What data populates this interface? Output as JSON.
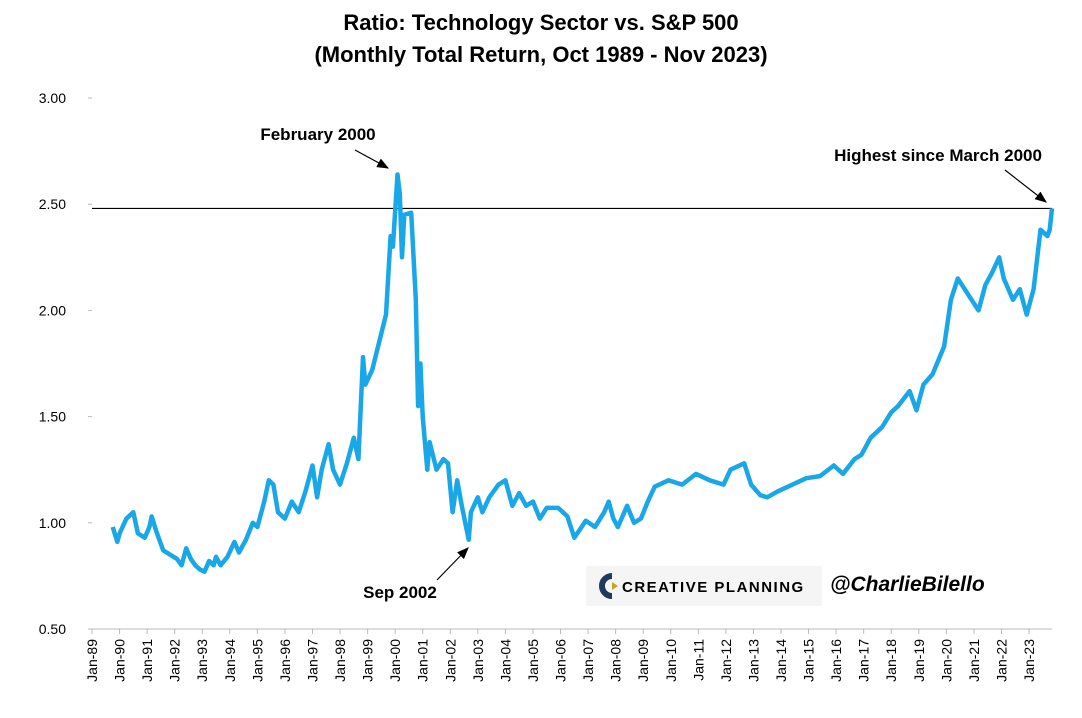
{
  "chart_data": {
    "type": "line",
    "title": "Ratio: Technology Sector vs. S&P 500",
    "subtitle": "(Monthly Total Return, Oct 1989 - Nov 2023)",
    "annotations": [
      "February 2000",
      "Sep 2002",
      "Highest since March 2000"
    ],
    "watermark": [
      "CREATIVE PLANNING",
      "@CharlieBilello"
    ],
    "reference_line": 2.48,
    "color": "#1aa7e8",
    "xlim": [
      "Jan-89",
      "Nov-23"
    ],
    "xticks": [
      "Jan-89",
      "Jan-90",
      "Jan-91",
      "Jan-92",
      "Jan-93",
      "Jan-94",
      "Jan-95",
      "Jan-96",
      "Jan-97",
      "Jan-98",
      "Jan-99",
      "Jan-00",
      "Jan-01",
      "Jan-02",
      "Jan-03",
      "Jan-04",
      "Jan-05",
      "Jan-06",
      "Jan-07",
      "Jan-08",
      "Jan-09",
      "Jan-10",
      "Jan-11",
      "Jan-12",
      "Jan-13",
      "Jan-14",
      "Jan-15",
      "Jan-16",
      "Jan-17",
      "Jan-18",
      "Jan-19",
      "Jan-20",
      "Jan-21",
      "Jan-22",
      "Jan-23"
    ],
    "ylim": [
      0.5,
      3
    ],
    "yticks": [
      {
        "value": 0.5,
        "label": "0.50"
      },
      {
        "value": 1,
        "label": "1.00"
      },
      {
        "value": 1.5,
        "label": "1.50"
      },
      {
        "value": 2,
        "label": "2.00"
      },
      {
        "value": 2.5,
        "label": "2.50"
      },
      {
        "value": 3,
        "label": "3.00"
      }
    ],
    "x": [
      "Oct-89",
      "Dec-89",
      "Jan-90",
      "Apr-90",
      "Jul-90",
      "Sep-90",
      "Dec-90",
      "Feb-91",
      "Mar-91",
      "May-91",
      "Aug-91",
      "Nov-91",
      "Feb-92",
      "Apr-92",
      "Jun-92",
      "Aug-92",
      "Oct-92",
      "Dec-92",
      "Feb-93",
      "Apr-93",
      "Jun-93",
      "Jul-93",
      "Sep-93",
      "Dec-93",
      "Mar-94",
      "May-94",
      "Aug-94",
      "Nov-94",
      "Jan-95",
      "Apr-95",
      "Jun-95",
      "Aug-95",
      "Oct-95",
      "Jan-96",
      "Apr-96",
      "Jul-96",
      "Oct-96",
      "Jan-97",
      "Mar-97",
      "May-97",
      "Aug-97",
      "Oct-97",
      "Jan-98",
      "Apr-98",
      "Jul-98",
      "Sep-98",
      "Nov-98",
      "Dec-98",
      "Mar-99",
      "Jun-99",
      "Sep-99",
      "Nov-99",
      "Dec-99",
      "Feb-00",
      "Mar-00",
      "Apr-00",
      "May-00",
      "Aug-00",
      "Oct-00",
      "Nov-00",
      "Dec-00",
      "Jan-01",
      "Mar-01",
      "Apr-01",
      "Jul-01",
      "Oct-01",
      "Dec-01",
      "Feb-02",
      "Apr-02",
      "Jun-02",
      "Sep-02",
      "Oct-02",
      "Jan-03",
      "Mar-03",
      "Jun-03",
      "Oct-03",
      "Jan-04",
      "Apr-04",
      "Jul-04",
      "Oct-04",
      "Jan-05",
      "Apr-05",
      "Jul-05",
      "Dec-05",
      "Apr-06",
      "Jul-06",
      "Dec-06",
      "Apr-07",
      "Aug-07",
      "Oct-07",
      "Dec-07",
      "Feb-08",
      "Jun-08",
      "Sep-08",
      "Dec-08",
      "Mar-09",
      "Jun-09",
      "Dec-09",
      "Jun-10",
      "Dec-10",
      "Jun-11",
      "Dec-11",
      "Mar-12",
      "Sep-12",
      "Dec-12",
      "Apr-13",
      "Jul-13",
      "Dec-13",
      "Jun-14",
      "Dec-14",
      "Jun-15",
      "Dec-15",
      "Apr-16",
      "Sep-16",
      "Dec-16",
      "Apr-17",
      "Sep-17",
      "Jan-18",
      "Apr-18",
      "Sep-18",
      "Dec-18",
      "Mar-19",
      "Jul-19",
      "Dec-19",
      "Mar-20",
      "Jun-20",
      "Sep-20",
      "Dec-20",
      "Mar-21",
      "Jun-21",
      "Sep-21",
      "Dec-21",
      "Feb-22",
      "Jun-22",
      "Sep-22",
      "Dec-22",
      "Mar-23",
      "Jun-23",
      "Sep-23",
      "Oct-23",
      "Nov-23"
    ],
    "values": [
      0.98,
      0.91,
      0.95,
      1.02,
      1.05,
      0.95,
      0.93,
      0.98,
      1.03,
      0.96,
      0.87,
      0.85,
      0.83,
      0.8,
      0.88,
      0.83,
      0.8,
      0.78,
      0.77,
      0.82,
      0.8,
      0.84,
      0.8,
      0.84,
      0.91,
      0.86,
      0.92,
      1.0,
      0.98,
      1.1,
      1.2,
      1.18,
      1.05,
      1.02,
      1.1,
      1.05,
      1.15,
      1.27,
      1.12,
      1.25,
      1.37,
      1.25,
      1.18,
      1.28,
      1.4,
      1.3,
      1.78,
      1.65,
      1.72,
      1.85,
      1.98,
      2.35,
      2.3,
      2.64,
      2.55,
      2.25,
      2.45,
      2.46,
      2.05,
      1.55,
      1.75,
      1.5,
      1.25,
      1.38,
      1.25,
      1.3,
      1.28,
      1.05,
      1.2,
      1.08,
      0.92,
      1.05,
      1.12,
      1.05,
      1.12,
      1.18,
      1.2,
      1.08,
      1.14,
      1.08,
      1.1,
      1.02,
      1.07,
      1.07,
      1.03,
      0.93,
      1.01,
      0.98,
      1.05,
      1.1,
      1.02,
      0.98,
      1.08,
      1.0,
      1.02,
      1.1,
      1.17,
      1.2,
      1.18,
      1.23,
      1.2,
      1.18,
      1.25,
      1.28,
      1.18,
      1.13,
      1.12,
      1.15,
      1.18,
      1.21,
      1.22,
      1.27,
      1.23,
      1.3,
      1.32,
      1.4,
      1.45,
      1.52,
      1.55,
      1.62,
      1.53,
      1.65,
      1.7,
      1.83,
      2.05,
      2.15,
      2.1,
      2.05,
      2.0,
      2.12,
      2.18,
      2.25,
      2.15,
      2.05,
      2.1,
      1.98,
      2.1,
      2.38,
      2.35,
      2.38,
      2.48
    ]
  }
}
